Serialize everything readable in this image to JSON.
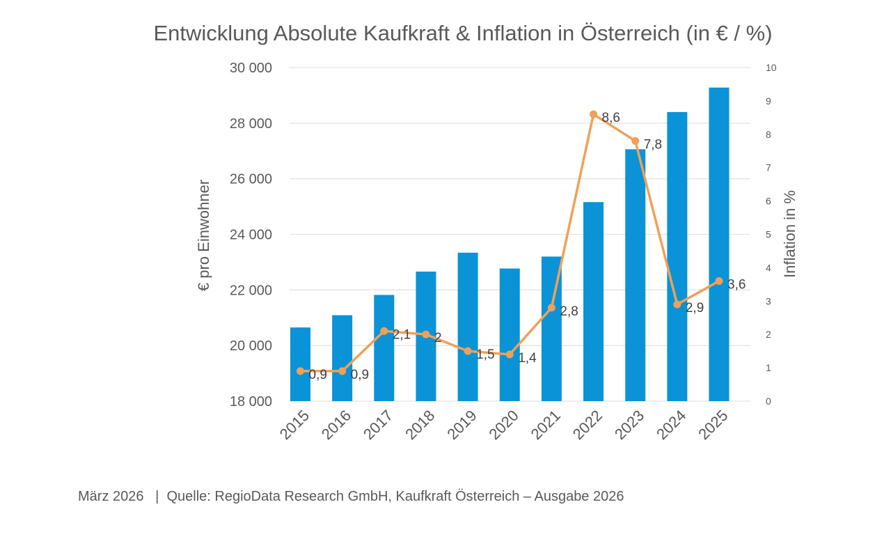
{
  "chart_data": {
    "type": "bar+line",
    "title": "Entwicklung Absolute Kaufkraft & Inflation in Österreich (in € / %)",
    "categories": [
      "2015",
      "2016",
      "2017",
      "2018",
      "2019",
      "2020",
      "2021",
      "2022",
      "2023",
      "2024",
      "2025"
    ],
    "series": [
      {
        "name": "€ pro Einwohner",
        "type": "bar",
        "axis": "left",
        "color": "#0a93d6",
        "values": [
          20650,
          21090,
          21820,
          22660,
          23340,
          22770,
          23200,
          25160,
          27060,
          28400,
          29280
        ]
      },
      {
        "name": "Inflation in %",
        "type": "line",
        "axis": "right",
        "color": "#f0a05a",
        "values": [
          0.9,
          0.9,
          2.1,
          2.0,
          1.5,
          1.4,
          2.8,
          8.6,
          7.8,
          2.9,
          3.6
        ],
        "labels": [
          "0,9",
          "0,9",
          "2,1",
          "2",
          "1,5",
          "1,4",
          "2,8",
          "8,6",
          "7,8",
          "2,9",
          "3,6"
        ]
      }
    ],
    "ylabel": "€ pro Einwohner",
    "ylabel_color": "#1a9ad6",
    "y2label": "Inflation in %",
    "y2label_color": "#e8913f",
    "ylim": [
      18000,
      30000
    ],
    "y2lim": [
      0,
      10
    ],
    "yticks": [
      "18 000",
      "20 000",
      "22 000",
      "24 000",
      "26 000",
      "28 000",
      "30 000"
    ],
    "y2ticks": [
      "0",
      "1",
      "2",
      "3",
      "4",
      "5",
      "6",
      "7",
      "8",
      "9",
      "10"
    ],
    "grid": true
  },
  "footer": "März 2026   |  Quelle: RegioData Research GmbH, Kaufkraft Österreich – Ausgabe 2026"
}
